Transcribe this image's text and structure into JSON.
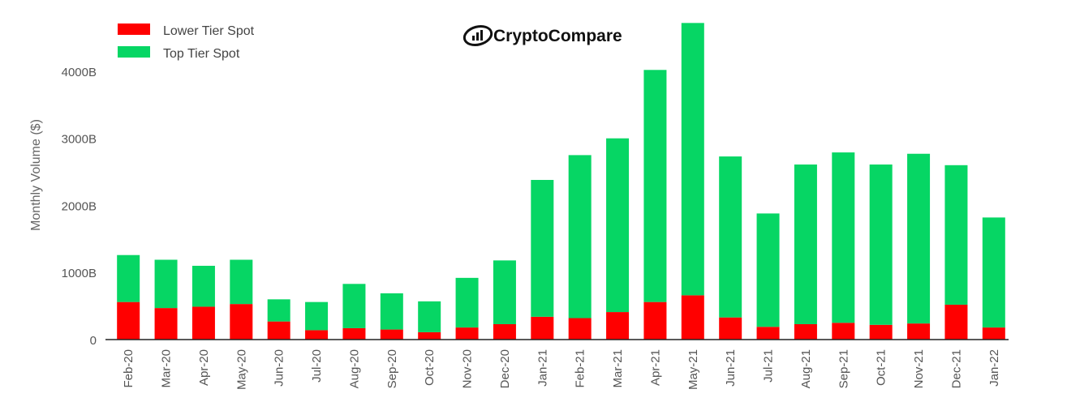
{
  "chart_data": {
    "type": "bar",
    "stacked": true,
    "categories": [
      "Feb-20",
      "Mar-20",
      "Apr-20",
      "May-20",
      "Jun-20",
      "Jul-20",
      "Aug-20",
      "Sep-20",
      "Oct-20",
      "Nov-20",
      "Dec-20",
      "Jan-21",
      "Feb-21",
      "Mar-21",
      "Apr-21",
      "May-21",
      "Jun-21",
      "Jul-21",
      "Aug-21",
      "Sep-21",
      "Oct-21",
      "Nov-21",
      "Dec-21",
      "Jan-22"
    ],
    "series": [
      {
        "name": "Lower Tier Spot",
        "color": "#ff0000",
        "values": [
          560,
          470,
          490,
          530,
          270,
          140,
          170,
          150,
          110,
          180,
          230,
          340,
          320,
          410,
          560,
          660,
          330,
          190,
          230,
          250,
          220,
          240,
          520,
          180
        ]
      },
      {
        "name": "Top Tier Spot",
        "color": "#06d664",
        "values": [
          700,
          720,
          610,
          660,
          330,
          420,
          660,
          540,
          460,
          740,
          950,
          2040,
          2430,
          2590,
          3460,
          4060,
          2400,
          1690,
          2380,
          2540,
          2390,
          2530,
          2080,
          1640
        ]
      }
    ],
    "title": "",
    "xlabel": "",
    "ylabel": "Monthly Volume ($)",
    "ylim": [
      0,
      4700
    ],
    "yticks": [
      0,
      1000,
      2000,
      3000,
      4000
    ],
    "ytick_labels": [
      "0",
      "1000B",
      "2000B",
      "3000B",
      "4000B"
    ],
    "legend_position": "top-left",
    "grid": false
  },
  "brand": {
    "name": "CryptoCompare",
    "icon": "cryptocompare-logo-icon"
  }
}
